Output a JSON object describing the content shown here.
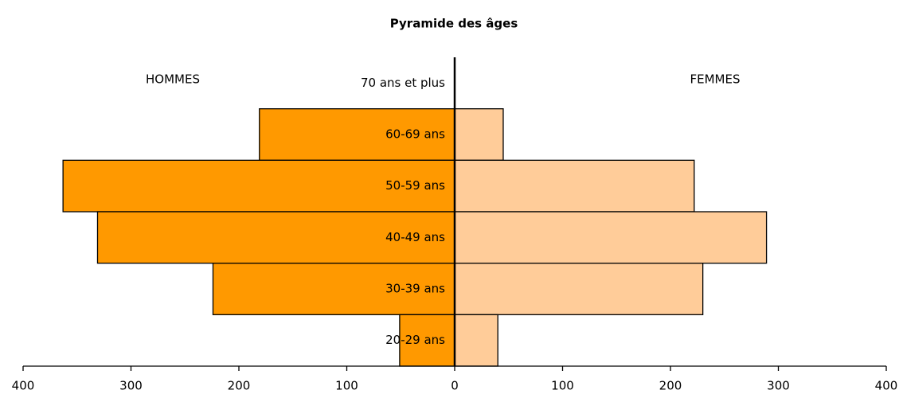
{
  "chart_data": {
    "type": "pyramid",
    "title": "Pyramide des âges",
    "categories": [
      "70 ans et plus",
      "60-69 ans",
      "50-59 ans",
      "40-49 ans",
      "30-39 ans",
      "20-29 ans"
    ],
    "series": [
      {
        "name": "HOMMES",
        "color": "#ff9900",
        "values": [
          0,
          181,
          363,
          331,
          224,
          51
        ]
      },
      {
        "name": "FEMMES",
        "color": "#ffcc99",
        "values": [
          0,
          45,
          222,
          289,
          230,
          40
        ]
      }
    ],
    "xlim": [
      -400,
      400
    ],
    "xticks": [
      {
        "value": -400,
        "label": "400"
      },
      {
        "value": -300,
        "label": "300"
      },
      {
        "value": -200,
        "label": "200"
      },
      {
        "value": -100,
        "label": "100"
      },
      0,
      100,
      200,
      300,
      400
    ]
  }
}
